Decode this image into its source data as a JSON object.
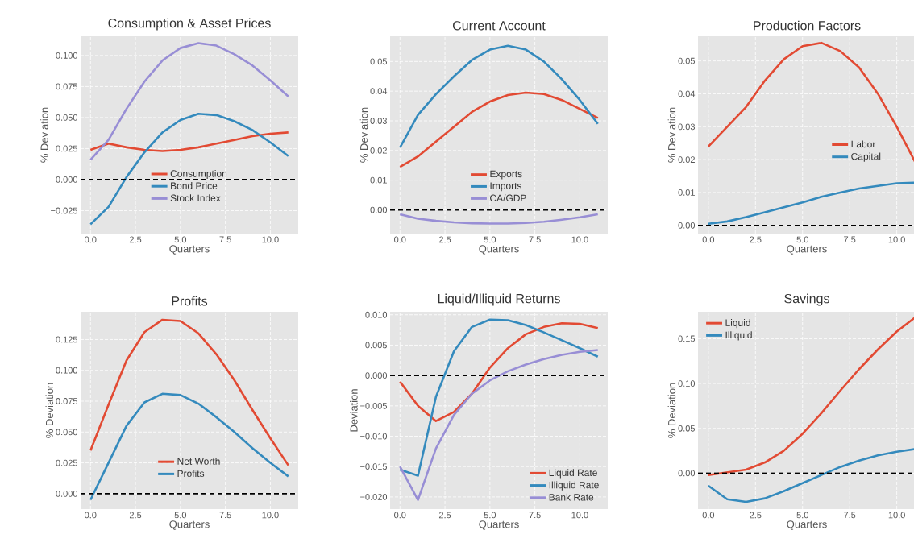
{
  "chart_data": [
    {
      "type": "line",
      "title": "Consumption & Asset Prices",
      "xlabel": "Quarters",
      "ylabel": "% Deviation",
      "x": [
        0,
        1,
        2,
        3,
        4,
        5,
        6,
        7,
        8,
        9,
        10,
        11
      ],
      "series": [
        {
          "name": "Consumption",
          "color": "#e24a33",
          "values": [
            0.024,
            0.029,
            0.026,
            0.024,
            0.023,
            0.024,
            0.026,
            0.029,
            0.032,
            0.035,
            0.037,
            0.038
          ]
        },
        {
          "name": "Bond Price",
          "color": "#348abd",
          "values": [
            -0.036,
            -0.022,
            0.002,
            0.022,
            0.038,
            0.048,
            0.053,
            0.052,
            0.047,
            0.04,
            0.03,
            0.019
          ]
        },
        {
          "name": "Stock Index",
          "color": "#988ed5",
          "values": [
            0.016,
            0.032,
            0.057,
            0.079,
            0.096,
            0.106,
            0.11,
            0.108,
            0.101,
            0.092,
            0.08,
            0.067
          ]
        }
      ],
      "xlim": [
        -0.55,
        11.55
      ],
      "xticks": [
        {
          "value": 0,
          "label": "0.0"
        },
        {
          "value": 2.5,
          "label": "2.5"
        },
        {
          "value": 5,
          "label": "5.0"
        },
        {
          "value": 7.5,
          "label": "7.5"
        },
        {
          "value": 10,
          "label": "10.0"
        }
      ],
      "ylim": [
        -0.0435,
        0.1155
      ],
      "yticks": [
        {
          "value": -0.025,
          "label": "−0.025"
        },
        {
          "value": 0,
          "label": "0.000"
        },
        {
          "value": 0.025,
          "label": "0.025"
        },
        {
          "value": 0.05,
          "label": "0.050"
        },
        {
          "value": 0.075,
          "label": "0.075"
        },
        {
          "value": 0.1,
          "label": "0.100"
        }
      ],
      "ref_lines": [
        {
          "axis": "y",
          "value": 0,
          "color": "#000000",
          "line_style": "dashed"
        }
      ],
      "grid": true,
      "legend": "bottom"
    },
    {
      "type": "line",
      "title": "Current Account",
      "xlabel": "Quarters",
      "ylabel": "% Deviation",
      "x": [
        0,
        1,
        2,
        3,
        4,
        5,
        6,
        7,
        8,
        9,
        10,
        11
      ],
      "series": [
        {
          "name": "Exports",
          "color": "#e24a33",
          "values": [
            0.0145,
            0.018,
            0.023,
            0.028,
            0.033,
            0.0365,
            0.0387,
            0.0395,
            0.039,
            0.037,
            0.034,
            0.031
          ]
        },
        {
          "name": "Imports",
          "color": "#348abd",
          "values": [
            0.021,
            0.032,
            0.039,
            0.045,
            0.0505,
            0.054,
            0.0553,
            0.054,
            0.05,
            0.044,
            0.037,
            0.029
          ]
        },
        {
          "name": "CA/GDP",
          "color": "#988ed5",
          "values": [
            -0.0015,
            -0.003,
            -0.0037,
            -0.0042,
            -0.0045,
            -0.0046,
            -0.0046,
            -0.0044,
            -0.004,
            -0.0033,
            -0.0025,
            -0.0015
          ]
        }
      ],
      "xlim": [
        -0.55,
        11.55
      ],
      "xticks": [
        {
          "value": 0,
          "label": "0.0"
        },
        {
          "value": 2.5,
          "label": "2.5"
        },
        {
          "value": 5,
          "label": "5.0"
        },
        {
          "value": 7.5,
          "label": "7.5"
        },
        {
          "value": 10,
          "label": "10.0"
        }
      ],
      "ylim": [
        -0.008,
        0.0585
      ],
      "yticks": [
        {
          "value": 0,
          "label": "0.00"
        },
        {
          "value": 0.01,
          "label": "0.01"
        },
        {
          "value": 0.02,
          "label": "0.02"
        },
        {
          "value": 0.03,
          "label": "0.03"
        },
        {
          "value": 0.04,
          "label": "0.04"
        },
        {
          "value": 0.05,
          "label": "0.05"
        }
      ],
      "ref_lines": [
        {
          "axis": "y",
          "value": 0,
          "color": "#000000",
          "line_style": "dashed"
        }
      ],
      "grid": true,
      "legend": "bottom"
    },
    {
      "type": "line",
      "title": "Production Factors",
      "xlabel": "Quarters",
      "ylabel": "% Deviation",
      "x": [
        0,
        1,
        2,
        3,
        4,
        5,
        6,
        7,
        8,
        9,
        10,
        11
      ],
      "series": [
        {
          "name": "Labor",
          "color": "#e24a33",
          "values": [
            0.024,
            0.03,
            0.036,
            0.044,
            0.0505,
            0.0545,
            0.0555,
            0.053,
            0.048,
            0.04,
            0.03,
            0.019
          ]
        },
        {
          "name": "Capital",
          "color": "#348abd",
          "values": [
            0.0005,
            0.0012,
            0.0025,
            0.004,
            0.0055,
            0.007,
            0.0087,
            0.01,
            0.0112,
            0.012,
            0.0128,
            0.013
          ]
        }
      ],
      "xlim": [
        -0.55,
        11
      ],
      "xticks": [
        {
          "value": 0,
          "label": "0.0"
        },
        {
          "value": 2.5,
          "label": "2.5"
        },
        {
          "value": 5,
          "label": "5.0"
        },
        {
          "value": 7.5,
          "label": "7.5"
        },
        {
          "value": 10,
          "label": "10.0"
        }
      ],
      "ylim": [
        -0.0025,
        0.0575
      ],
      "yticks": [
        {
          "value": 0,
          "label": "0.00"
        },
        {
          "value": 0.01,
          "label": "0.01"
        },
        {
          "value": 0.02,
          "label": "0.02"
        },
        {
          "value": 0.03,
          "label": "0.03"
        },
        {
          "value": 0.04,
          "label": "0.04"
        },
        {
          "value": 0.05,
          "label": "0.05"
        }
      ],
      "ref_lines": [
        {
          "axis": "y",
          "value": 0,
          "color": "#000000",
          "line_style": "dashed"
        }
      ],
      "grid": true,
      "legend": "right"
    },
    {
      "type": "line",
      "title": "Profits",
      "xlabel": "Quarters",
      "ylabel": "% Deviation",
      "x": [
        0,
        1,
        2,
        3,
        4,
        5,
        6,
        7,
        8,
        9,
        10,
        11
      ],
      "series": [
        {
          "name": "Net Worth",
          "color": "#e24a33",
          "values": [
            0.035,
            0.072,
            0.108,
            0.131,
            0.141,
            0.14,
            0.13,
            0.113,
            0.092,
            0.068,
            0.045,
            0.023
          ]
        },
        {
          "name": "Profits",
          "color": "#348abd",
          "values": [
            -0.005,
            0.025,
            0.055,
            0.074,
            0.081,
            0.08,
            0.073,
            0.062,
            0.05,
            0.037,
            0.025,
            0.014
          ]
        }
      ],
      "xlim": [
        -0.55,
        11.55
      ],
      "xticks": [
        {
          "value": 0,
          "label": "0.0"
        },
        {
          "value": 2.5,
          "label": "2.5"
        },
        {
          "value": 5,
          "label": "5.0"
        },
        {
          "value": 7.5,
          "label": "7.5"
        },
        {
          "value": 10,
          "label": "10.0"
        }
      ],
      "ylim": [
        -0.0125,
        0.1475
      ],
      "yticks": [
        {
          "value": 0,
          "label": "0.000"
        },
        {
          "value": 0.025,
          "label": "0.025"
        },
        {
          "value": 0.05,
          "label": "0.050"
        },
        {
          "value": 0.075,
          "label": "0.075"
        },
        {
          "value": 0.1,
          "label": "0.100"
        },
        {
          "value": 0.125,
          "label": "0.125"
        }
      ],
      "ref_lines": [
        {
          "axis": "y",
          "value": 0,
          "color": "#000000",
          "line_style": "dashed"
        }
      ],
      "grid": true,
      "legend": "bottom"
    },
    {
      "type": "line",
      "title": "Liquid/Illiquid Returns",
      "xlabel": "Quarters",
      "ylabel": "Deviation",
      "x": [
        0,
        1,
        2,
        3,
        4,
        5,
        6,
        7,
        8,
        9,
        10,
        11
      ],
      "series": [
        {
          "name": "Liquid Rate",
          "color": "#e24a33",
          "values": [
            -0.001,
            -0.005,
            -0.0075,
            -0.006,
            -0.003,
            0.0013,
            0.0045,
            0.0068,
            0.008,
            0.0086,
            0.0085,
            0.0078
          ]
        },
        {
          "name": "Illiquid Rate",
          "color": "#348abd",
          "values": [
            -0.0155,
            -0.0165,
            -0.0035,
            0.004,
            0.008,
            0.0092,
            0.0091,
            0.0083,
            0.0071,
            0.0058,
            0.0045,
            0.0031
          ]
        },
        {
          "name": "Bank Rate",
          "color": "#988ed5",
          "values": [
            -0.015,
            -0.0205,
            -0.012,
            -0.0065,
            -0.003,
            -0.0008,
            0.0007,
            0.0018,
            0.0027,
            0.0034,
            0.0039,
            0.0042
          ]
        }
      ],
      "xlim": [
        -0.55,
        11.55
      ],
      "xticks": [
        {
          "value": 0,
          "label": "0.0"
        },
        {
          "value": 2.5,
          "label": "2.5"
        },
        {
          "value": 5,
          "label": "5.0"
        },
        {
          "value": 7.5,
          "label": "7.5"
        },
        {
          "value": 10,
          "label": "10.0"
        }
      ],
      "ylim": [
        -0.022,
        0.0105
      ],
      "yticks": [
        {
          "value": -0.02,
          "label": "−0.020"
        },
        {
          "value": -0.015,
          "label": "−0.015"
        },
        {
          "value": -0.01,
          "label": "−0.010"
        },
        {
          "value": -0.005,
          "label": "−0.005"
        },
        {
          "value": 0,
          "label": "0.000"
        },
        {
          "value": 0.005,
          "label": "0.005"
        },
        {
          "value": 0.01,
          "label": "0.010"
        }
      ],
      "ref_lines": [
        {
          "axis": "y",
          "value": 0,
          "color": "#000000",
          "line_style": "dashed"
        }
      ],
      "grid": true,
      "legend": "bottom right"
    },
    {
      "type": "line",
      "title": "Savings",
      "xlabel": "Quarters",
      "ylabel": "% Deviation",
      "x": [
        0,
        1,
        2,
        3,
        4,
        5,
        6,
        7,
        8,
        9,
        10,
        11
      ],
      "series": [
        {
          "name": "Liquid",
          "color": "#e24a33",
          "values": [
            -0.002,
            0.001,
            0.004,
            0.012,
            0.025,
            0.044,
            0.067,
            0.092,
            0.116,
            0.138,
            0.158,
            0.174
          ]
        },
        {
          "name": "Illiquid",
          "color": "#348abd",
          "values": [
            -0.014,
            -0.029,
            -0.032,
            -0.028,
            -0.02,
            -0.011,
            -0.002,
            0.007,
            0.014,
            0.02,
            0.024,
            0.027
          ]
        }
      ],
      "xlim": [
        -0.55,
        11
      ],
      "xticks": [
        {
          "value": 0,
          "label": "0.0"
        },
        {
          "value": 2.5,
          "label": "2.5"
        },
        {
          "value": 5,
          "label": "5.0"
        },
        {
          "value": 7.5,
          "label": "7.5"
        },
        {
          "value": 10,
          "label": "10.0"
        }
      ],
      "ylim": [
        -0.04,
        0.18
      ],
      "yticks": [
        {
          "value": 0,
          "label": "0.00"
        },
        {
          "value": 0.05,
          "label": "0.05"
        },
        {
          "value": 0.1,
          "label": "0.10"
        },
        {
          "value": 0.15,
          "label": "0.15"
        }
      ],
      "ref_lines": [
        {
          "axis": "y",
          "value": 0,
          "color": "#000000",
          "line_style": "dashed"
        }
      ],
      "grid": true,
      "legend": "top left"
    }
  ]
}
